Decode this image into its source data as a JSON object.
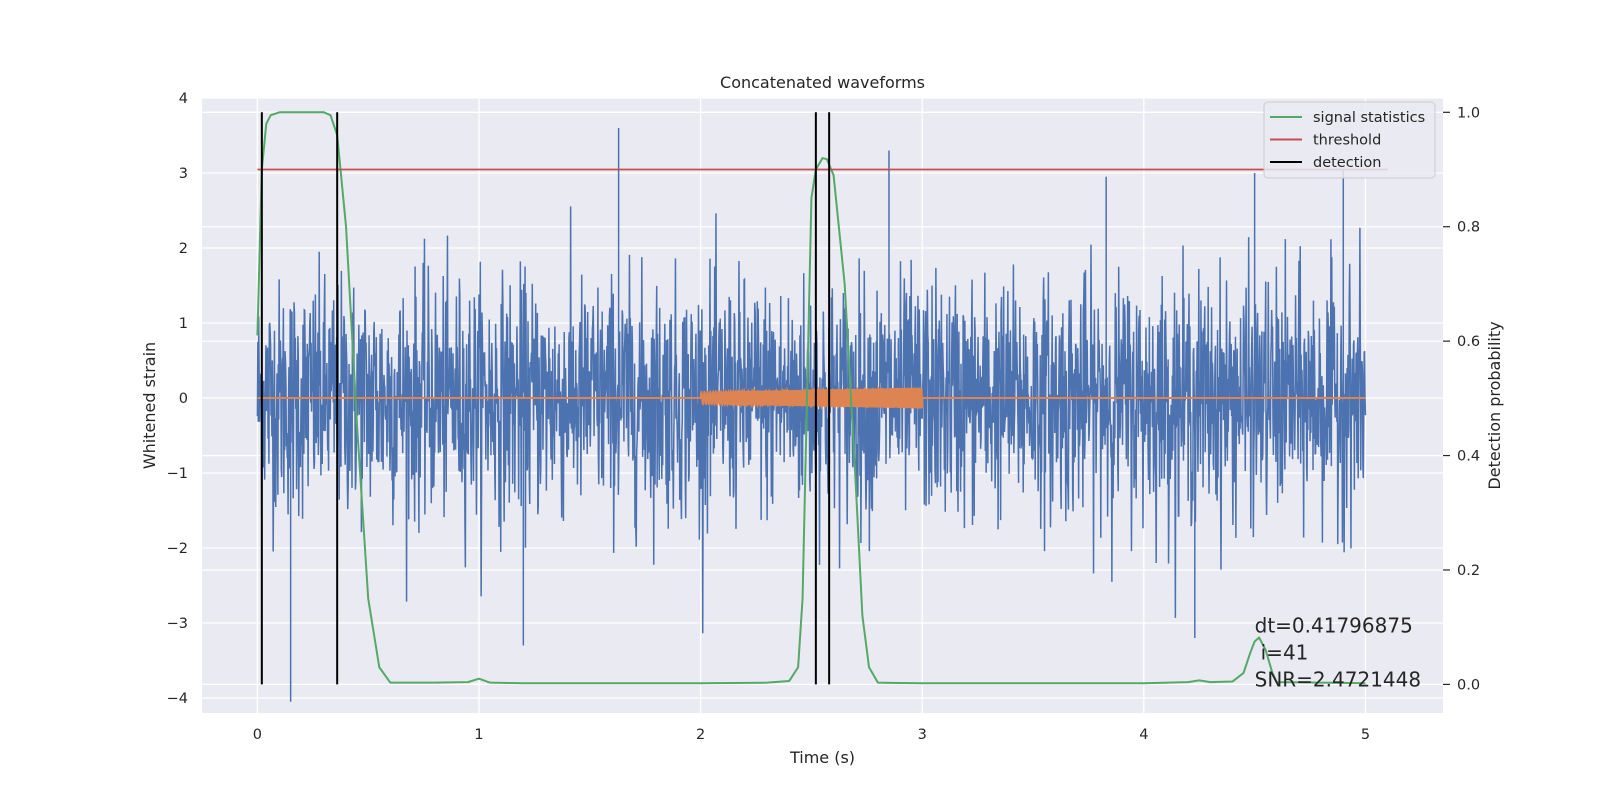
{
  "chart_data": {
    "type": "line",
    "title": "Concatenated waveforms",
    "xlabel": "Time (s)",
    "ylabel_left": "Whitened strain",
    "ylabel_right": "Detection probability",
    "xlim": [
      -0.25,
      5.35
    ],
    "ylim_left": [
      -4.2,
      4.0
    ],
    "ylim_right": [
      -0.05,
      1.025
    ],
    "x_ticks": [
      "0",
      "1",
      "2",
      "3",
      "4",
      "5"
    ],
    "y_left_ticks": [
      "−4",
      "−3",
      "−2",
      "−1",
      "0",
      "1",
      "2",
      "3",
      "4"
    ],
    "y_right_ticks": [
      "0.0",
      "0.2",
      "0.4",
      "0.6",
      "0.8",
      "1.0"
    ],
    "grid": true,
    "legend_position": "top-right",
    "legend": [
      {
        "label": "signal statistics",
        "color": "#55a868"
      },
      {
        "label": "threshold",
        "color": "#c44e52"
      },
      {
        "label": "detection",
        "color": "#000000"
      }
    ],
    "series": {
      "noise": {
        "color": "#4c72b0",
        "x_range": [
          0,
          5
        ],
        "approx_range": [
          -4.05,
          3.6
        ],
        "notable_peaks": [
          [
            1.63,
            3.6
          ],
          [
            2.85,
            3.3
          ],
          [
            3.83,
            2.95
          ],
          [
            4.5,
            3.0
          ],
          [
            4.9,
            3.05
          ],
          [
            0.15,
            -4.05
          ],
          [
            1.2,
            -3.3
          ],
          [
            4.23,
            -3.2
          ]
        ]
      },
      "injection": {
        "color": "#dd8452",
        "x_range": [
          2.0,
          3.0
        ],
        "amplitude_start": 0.08,
        "amplitude_end": 0.14
      },
      "signal_statistics": {
        "color": "#55a868",
        "x": [
          0.0,
          0.02,
          0.04,
          0.06,
          0.1,
          0.2,
          0.3,
          0.33,
          0.36,
          0.4,
          0.45,
          0.5,
          0.55,
          0.6,
          0.8,
          0.95,
          1.0,
          1.05,
          1.2,
          2.0,
          2.3,
          2.4,
          2.44,
          2.46,
          2.48,
          2.5,
          2.52,
          2.55,
          2.57,
          2.6,
          2.65,
          2.7,
          2.73,
          2.76,
          2.8,
          3.0,
          4.0,
          4.2,
          4.25,
          4.3,
          4.4,
          4.45,
          4.48,
          4.5,
          4.52,
          4.55,
          4.58,
          4.6,
          4.8,
          5.0
        ],
        "y": [
          0.61,
          0.9,
          0.98,
          0.995,
          1.0,
          1.0,
          1.0,
          0.995,
          0.96,
          0.8,
          0.45,
          0.15,
          0.03,
          0.003,
          0.003,
          0.004,
          0.01,
          0.003,
          0.002,
          0.002,
          0.003,
          0.006,
          0.03,
          0.15,
          0.5,
          0.85,
          0.9,
          0.92,
          0.918,
          0.89,
          0.7,
          0.35,
          0.12,
          0.03,
          0.003,
          0.002,
          0.002,
          0.004,
          0.007,
          0.004,
          0.005,
          0.02,
          0.055,
          0.075,
          0.082,
          0.06,
          0.02,
          0.004,
          0.003,
          0.002
        ]
      },
      "threshold": {
        "color": "#c44e52",
        "x_range": [
          0.0,
          5.1
        ],
        "value": 0.9
      },
      "detections": {
        "color": "#000000",
        "x": [
          0.02,
          0.36,
          2.52,
          2.58
        ],
        "y_range": [
          0.0,
          1.0
        ]
      }
    },
    "annotation": {
      "lines": [
        "dt=0.41796875",
        "i=41",
        "SNR=2.4721448"
      ],
      "x": 4.5,
      "y_right": 0.08
    }
  }
}
